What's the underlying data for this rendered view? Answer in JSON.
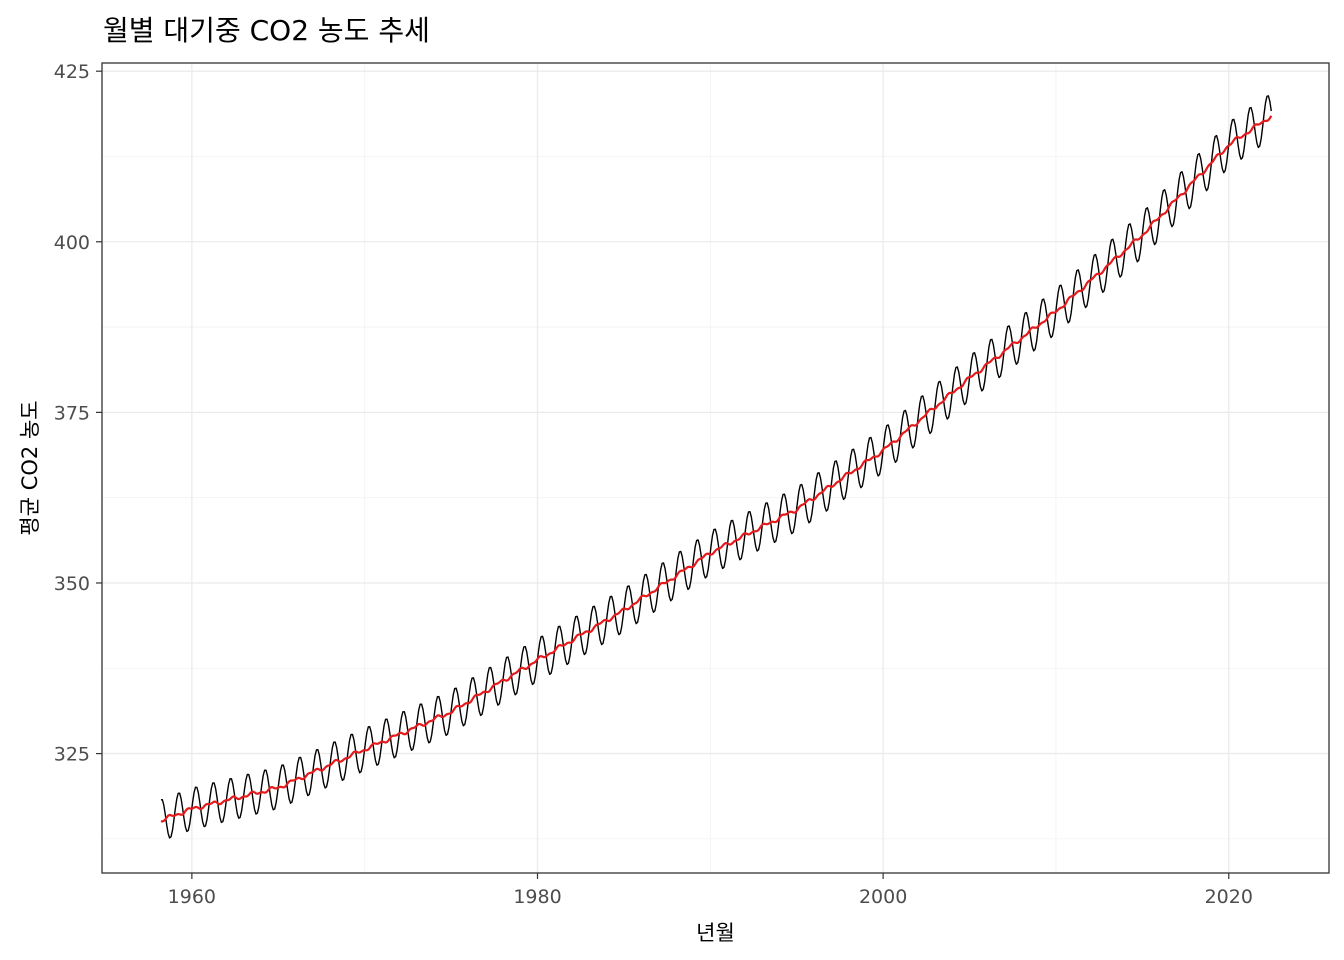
{
  "chart_data": {
    "type": "line",
    "title": "월별 대기중 CO2 농도 추세",
    "xlabel": "년월",
    "ylabel": "평균 CO2 농도",
    "x_ticks": [
      "1960",
      "1980",
      "2000",
      "2020"
    ],
    "x_tick_values": [
      1960,
      1980,
      2000,
      2020
    ],
    "y_ticks": [
      "325",
      "350",
      "375",
      "400",
      "425"
    ],
    "y_tick_values": [
      325,
      350,
      375,
      400,
      425
    ],
    "xlim": [
      1954.8,
      2025.8
    ],
    "ylim": [
      307.5,
      426.2
    ],
    "grid": true,
    "legend": "none",
    "x_start": 1958.21,
    "x_end": 2022.5,
    "seasonal_amplitude": 3.1,
    "series": [
      {
        "color": "#000000",
        "description": "monthly average",
        "x": [
          1958,
          1960,
          1965,
          1970,
          1975,
          1980,
          1985,
          1990,
          1995,
          2000,
          2005,
          2010,
          2015,
          2020,
          2022.5
        ],
        "y": [
          315.0,
          316.9,
          320.0,
          325.6,
          331.1,
          338.7,
          346.0,
          354.4,
          360.8,
          369.4,
          380.0,
          389.8,
          401.0,
          414.2,
          418.5
        ]
      },
      {
        "color": "#e41a1c",
        "description": "deseasonalized trend",
        "x": [
          1958,
          1960,
          1965,
          1970,
          1975,
          1980,
          1985,
          1990,
          1995,
          2000,
          2005,
          2010,
          2015,
          2020,
          2022.5
        ],
        "y": [
          315.0,
          316.9,
          320.0,
          325.6,
          331.1,
          338.7,
          346.0,
          354.4,
          360.8,
          369.4,
          380.0,
          389.8,
          401.0,
          414.2,
          418.5
        ]
      }
    ]
  }
}
